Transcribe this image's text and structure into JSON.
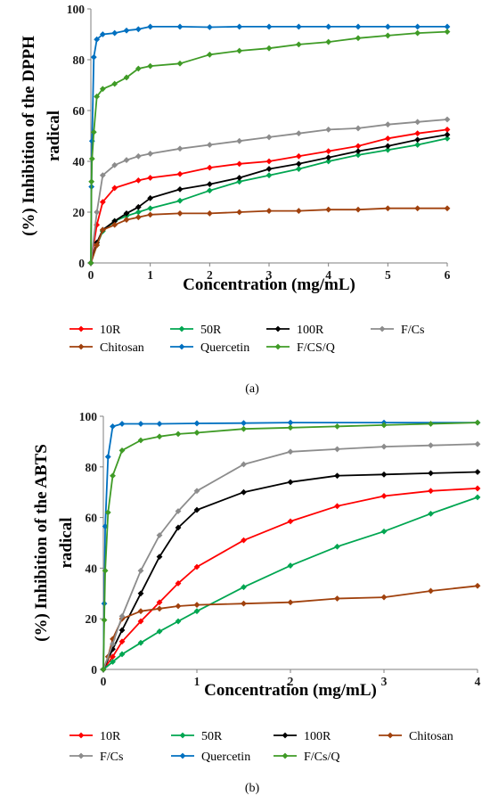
{
  "colors": {
    "10R": "#ff0000",
    "50R": "#00a651",
    "100R": "#000000",
    "Chitosan": "#a0410d",
    "Quercetin": "#0070c0",
    "F/Cs": "#8c8c8c",
    "F/CS/Q": "#3f9b26"
  },
  "chart_data": [
    {
      "type": "line",
      "panel_label": "(a)",
      "xlabel": "Concentration (mg/mL)",
      "ylabel": [
        "(%) Inhibition of the DPPH",
        "radical"
      ],
      "xlim": [
        0,
        6
      ],
      "ylim": [
        0,
        100
      ],
      "xticks": [
        0,
        1,
        2,
        3,
        4,
        5,
        6
      ],
      "yticks": [
        0,
        20,
        40,
        60,
        80,
        100
      ],
      "grid": false,
      "legend_position": "bottom",
      "legend_layout": [
        [
          "10R",
          "50R",
          "100R",
          "F/Cs"
        ],
        [
          "Chitosan",
          "Quercetin",
          "F/CS/Q"
        ]
      ],
      "series": [
        {
          "name": "10R",
          "x": [
            0,
            0.1,
            0.2,
            0.4,
            0.8,
            1,
            1.5,
            2,
            2.5,
            3,
            3.5,
            4,
            4.5,
            5,
            5.5,
            6
          ],
          "y": [
            0,
            15,
            24,
            29.5,
            32.5,
            33.5,
            35,
            37.5,
            39,
            40,
            42,
            44,
            46,
            49,
            51,
            52.5
          ]
        },
        {
          "name": "50R",
          "x": [
            0,
            0.1,
            0.2,
            0.4,
            0.6,
            0.8,
            1,
            1.5,
            2,
            2.5,
            3,
            3.5,
            4,
            4.5,
            5,
            5.5,
            6
          ],
          "y": [
            0,
            7,
            12.5,
            16.5,
            18.5,
            20,
            21.5,
            24.5,
            28.5,
            32,
            34.5,
            37,
            40,
            42.5,
            44.5,
            46.5,
            49
          ]
        },
        {
          "name": "100R",
          "x": [
            0,
            0.1,
            0.2,
            0.4,
            0.6,
            0.8,
            1,
            1.5,
            2,
            2.5,
            3,
            3.5,
            4,
            4.5,
            5,
            5.5,
            6
          ],
          "y": [
            0,
            8,
            13,
            16.5,
            19.5,
            22,
            25.5,
            29,
            31,
            33.5,
            37,
            39,
            41.5,
            44,
            46,
            48.5,
            50.5
          ]
        },
        {
          "name": "Chitosan",
          "x": [
            0,
            0.1,
            0.2,
            0.4,
            0.6,
            0.8,
            1,
            1.5,
            2,
            2.5,
            3,
            3.5,
            4,
            4.5,
            5,
            5.5,
            6
          ],
          "y": [
            0,
            7,
            13,
            15,
            17,
            18,
            19,
            19.5,
            19.5,
            20,
            20.5,
            20.5,
            21,
            21,
            21.5,
            21.5,
            21.5
          ]
        },
        {
          "name": "Quercetin",
          "x": [
            0,
            0.01,
            0.02,
            0.05,
            0.1,
            0.2,
            0.4,
            0.6,
            0.8,
            1,
            1.5,
            2,
            2.5,
            3,
            3.5,
            4,
            4.5,
            5,
            5.5,
            6
          ],
          "y": [
            0,
            30,
            48,
            81,
            88,
            90,
            90.5,
            91.5,
            92,
            93,
            93,
            92.8,
            93,
            93,
            93,
            93,
            93,
            93,
            93,
            93
          ]
        },
        {
          "name": "F/Cs",
          "x": [
            0,
            0.1,
            0.2,
            0.4,
            0.6,
            0.8,
            1,
            1.5,
            2,
            2.5,
            3,
            3.5,
            4,
            4.5,
            5,
            5.5,
            6
          ],
          "y": [
            0,
            20,
            34.5,
            38.5,
            40.5,
            42,
            43,
            45,
            46.5,
            48,
            49.5,
            51,
            52.5,
            53,
            54.5,
            55.5,
            56.5
          ]
        },
        {
          "name": "F/CS/Q",
          "x": [
            0,
            0.01,
            0.02,
            0.05,
            0.1,
            0.2,
            0.4,
            0.6,
            0.8,
            1,
            1.5,
            2,
            2.5,
            3,
            3.5,
            4,
            4.5,
            5,
            5.5,
            6
          ],
          "y": [
            0,
            32,
            41,
            51.5,
            65.5,
            68.5,
            70.5,
            73,
            76.5,
            77.5,
            78.5,
            82,
            83.5,
            84.5,
            86,
            87,
            88.5,
            89.5,
            90.5,
            91
          ]
        }
      ]
    },
    {
      "type": "line",
      "panel_label": "(b)",
      "xlabel": "Concentration (mg/mL)",
      "ylabel": [
        "(%) Inhibition of the ABTS",
        "radical"
      ],
      "xlim": [
        0,
        4
      ],
      "ylim": [
        0,
        100
      ],
      "xticks": [
        0,
        1,
        2,
        3,
        4
      ],
      "yticks": [
        0,
        20,
        40,
        60,
        80,
        100
      ],
      "grid": false,
      "legend_position": "bottom",
      "legend_layout": [
        [
          "10R",
          "50R",
          "100R",
          "Chitosan"
        ],
        [
          "F/Cs",
          "Quercetin",
          "F/Cs/Q"
        ]
      ],
      "series": [
        {
          "name": "10R",
          "x": [
            0,
            0.1,
            0.2,
            0.4,
            0.6,
            0.8,
            1,
            1.5,
            2,
            2.5,
            3,
            3.5,
            4
          ],
          "y": [
            0,
            5,
            11,
            19,
            26.5,
            34,
            40.5,
            51,
            58.5,
            64.5,
            68.5,
            70.5,
            71.5
          ]
        },
        {
          "name": "50R",
          "x": [
            0,
            0.1,
            0.2,
            0.4,
            0.6,
            0.8,
            1,
            1.5,
            2,
            2.5,
            3,
            3.5,
            4
          ],
          "y": [
            0,
            3,
            6,
            10.5,
            15,
            19,
            23,
            32.5,
            41,
            48.5,
            54.5,
            61.5,
            68
          ]
        },
        {
          "name": "100R",
          "x": [
            0,
            0.1,
            0.2,
            0.4,
            0.6,
            0.8,
            1,
            1.5,
            2,
            2.5,
            3,
            3.5,
            4
          ],
          "y": [
            0,
            8,
            15.5,
            30,
            44.5,
            56,
            63,
            70,
            74,
            76.5,
            77,
            77.5,
            78
          ]
        },
        {
          "name": "Chitosan",
          "x": [
            0,
            0.05,
            0.1,
            0.2,
            0.4,
            0.6,
            0.8,
            1,
            1.5,
            2,
            2.5,
            3,
            3.5,
            4
          ],
          "y": [
            0,
            5,
            12,
            20,
            23,
            24,
            25,
            25.5,
            26,
            26.5,
            28,
            28.5,
            31,
            33
          ]
        },
        {
          "name": "F/Cs",
          "x": [
            0,
            0.1,
            0.2,
            0.4,
            0.6,
            0.8,
            1,
            1.5,
            2,
            2.5,
            3,
            3.5,
            4
          ],
          "y": [
            0,
            10,
            21,
            39,
            53,
            62.5,
            70.5,
            81,
            86,
            87,
            88,
            88.5,
            89
          ]
        },
        {
          "name": "Quercetin",
          "x": [
            0,
            0.01,
            0.02,
            0.05,
            0.1,
            0.2,
            0.4,
            0.6,
            1,
            1.5,
            2,
            3,
            4
          ],
          "y": [
            0,
            26,
            56.5,
            84,
            96,
            97,
            97,
            97,
            97.2,
            97.3,
            97.5,
            97.5,
            97.5
          ]
        },
        {
          "name": "F/Cs/Q",
          "x": [
            0,
            0.01,
            0.02,
            0.05,
            0.1,
            0.2,
            0.4,
            0.6,
            0.8,
            1,
            1.5,
            2,
            2.5,
            3,
            3.5,
            4
          ],
          "y": [
            0,
            19.5,
            39,
            62,
            76.5,
            86.5,
            90.5,
            92,
            93,
            93.5,
            95,
            95.5,
            96,
            96.5,
            97,
            97.5
          ]
        }
      ]
    }
  ]
}
